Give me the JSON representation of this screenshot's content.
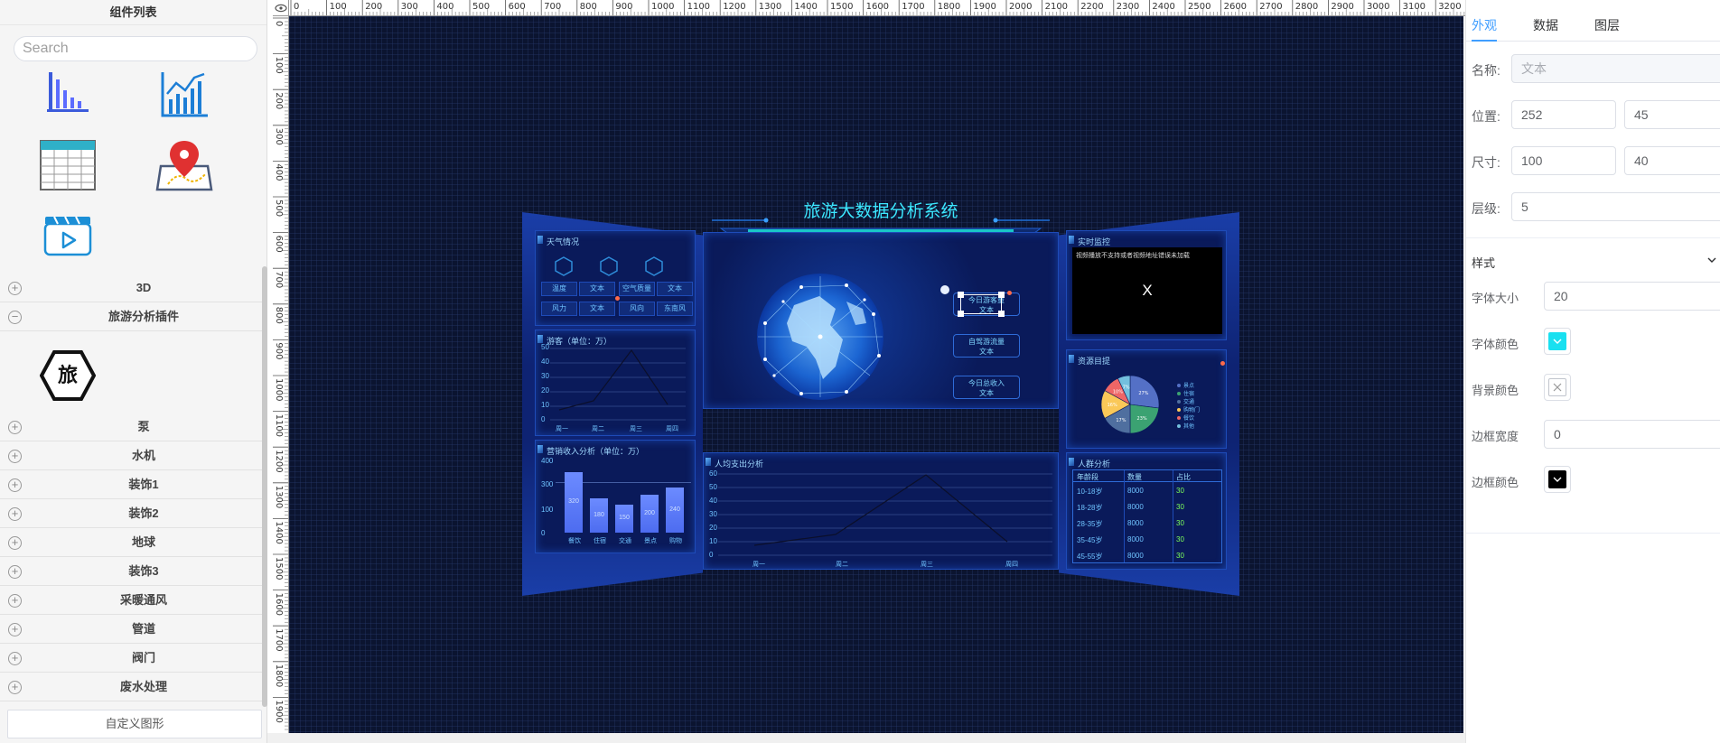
{
  "left_panel": {
    "title": "组件列表",
    "search_placeholder": "Search",
    "icons": [
      "bar-chart-icon",
      "line-chart-icon",
      "table-icon",
      "map-pin-icon",
      "video-icon"
    ],
    "plugin_icon_text": "旅",
    "categories": [
      "3D",
      "旅游分析插件",
      "泵",
      "水机",
      "装饰1",
      "装饰2",
      "地球",
      "装饰3",
      "采暖通风",
      "管道",
      "阀门",
      "废水处理"
    ],
    "category_states": [
      "+",
      "−",
      "+",
      "+",
      "+",
      "+",
      "+",
      "+",
      "+",
      "+",
      "+",
      "+"
    ],
    "footer_button": "自定义图形"
  },
  "ruler": {
    "h_ticks": [
      "0",
      "100",
      "200",
      "300",
      "400",
      "500",
      "600",
      "700",
      "800",
      "900",
      "1000",
      "1100",
      "1200",
      "1300",
      "1400",
      "1500",
      "1600",
      "1700",
      "1800",
      "1900",
      "2000",
      "2100",
      "2200",
      "2300",
      "2400",
      "2500",
      "2600",
      "2700",
      "2800",
      "2900",
      "3000",
      "3100",
      "3200"
    ],
    "v_ticks": [
      "0",
      "100",
      "200",
      "300",
      "400",
      "500",
      "600",
      "700",
      "800",
      "900",
      "1000",
      "1100",
      "1200",
      "1300",
      "1400",
      "1500",
      "1600",
      "1700",
      "1800",
      "1900"
    ]
  },
  "dashboard": {
    "title": "旅游大数据分析系统",
    "weather": {
      "title": "天气情况",
      "cells": [
        "温度",
        "文本",
        "空气质量",
        "文本",
        "风力",
        "文本",
        "风向",
        "东南风"
      ]
    },
    "tourists": {
      "title": "游客（单位：万）",
      "y_ticks": [
        "50",
        "40",
        "30",
        "20",
        "10",
        "0"
      ],
      "x_labels": [
        "周一",
        "周二",
        "周三",
        "周四"
      ]
    },
    "revenue": {
      "title": "营销收入分析（单位：万）",
      "y_ticks": [
        "400",
        "300",
        "100",
        "0"
      ],
      "chart_data": {
        "type": "bar",
        "categories": [
          "餐饮",
          "住宿",
          "交通",
          "景点",
          "购物"
        ],
        "values": [
          320,
          180,
          150,
          200,
          240
        ]
      }
    },
    "stats": [
      {
        "label": "今日游客量",
        "value": "文本"
      },
      {
        "label": "自驾游流量",
        "value": "文本"
      },
      {
        "label": "今日总收入",
        "value": "文本"
      }
    ],
    "spending": {
      "title": "人均支出分析",
      "y_ticks": [
        "60",
        "50",
        "40",
        "30",
        "20",
        "10",
        "0"
      ],
      "x_labels": [
        "周一",
        "周二",
        "周三",
        "周四"
      ]
    },
    "monitor": {
      "title": "实时监控",
      "notice": "视频播放不支持或者视频地址错误未加载",
      "close": "X"
    },
    "resources": {
      "title": "资源目提",
      "legend": [
        "景点",
        "住宿",
        "交通",
        "购物门",
        "餐饮",
        "其他"
      ],
      "chart_data": {
        "type": "pie",
        "labels": [
          "景点",
          "住宿",
          "交通",
          "购物门",
          "餐饮",
          "其他"
        ],
        "values": [
          27,
          23,
          17,
          16,
          10,
          7
        ],
        "colors": [
          "#5470c6",
          "#3ba272",
          "#4f6f9f",
          "#fac858",
          "#ee6666",
          "#73c0de"
        ]
      }
    },
    "crowd": {
      "title": "人群分析",
      "headers": [
        "年龄段",
        "数量",
        "占比"
      ],
      "rows": [
        [
          "10-18岁",
          "8000",
          "30"
        ],
        [
          "18-28岁",
          "8000",
          "30"
        ],
        [
          "28-35岁",
          "8000",
          "30"
        ],
        [
          "35-45岁",
          "8000",
          "30"
        ],
        [
          "45-55岁",
          "8000",
          "30"
        ]
      ]
    }
  },
  "right_panel": {
    "tabs": [
      "外观",
      "数据",
      "图层"
    ],
    "name_label": "名称:",
    "name_value": "文本",
    "position_label": "位置:",
    "position_x": "252",
    "position_y": "45",
    "size_label": "尺寸:",
    "size_w": "100",
    "size_h": "40",
    "layer_label": "层级:",
    "layer_value": "5",
    "style_section": "样式",
    "font_size_label": "字体大小",
    "font_size_value": "20",
    "font_color_label": "字体颜色",
    "font_color": "#19e0f0",
    "bg_color_label": "背景颜色",
    "border_width_label": "边框宽度",
    "border_width_value": "0",
    "border_color_label": "边框颜色",
    "border_color": "#000000"
  }
}
